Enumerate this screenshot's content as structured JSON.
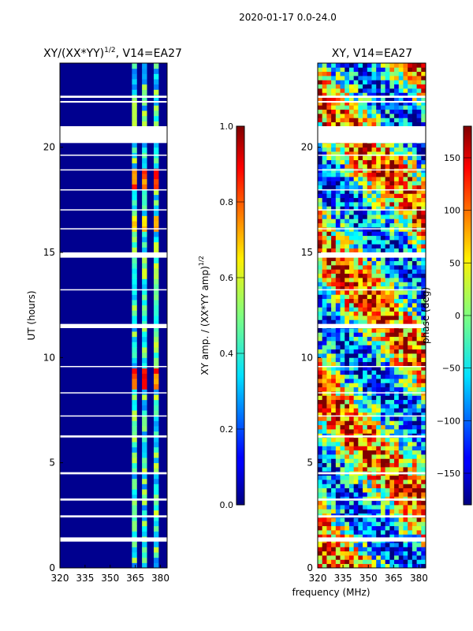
{
  "chart_data": {
    "suptitle": "2020-01-17 0.0-24.0",
    "shared_xlabel": "frequency (MHz)",
    "panels": [
      {
        "type": "heatmap",
        "title": "XY/(XX*YY)",
        "title_sup": "1/2",
        "title_suffix": ", V14=EA27",
        "ylabel": "UT (hours)",
        "xlim": [
          320,
          384
        ],
        "ylim": [
          0,
          24
        ],
        "xticks": [
          320,
          335,
          350,
          365,
          380
        ],
        "yticks": [
          0,
          5,
          10,
          15,
          20
        ],
        "colorbar": {
          "label": "XY amp. / (XX*YY amp)",
          "label_sup": "1/2",
          "range": [
            0.0,
            1.0
          ],
          "ticks": [
            "0.0",
            "0.2",
            "0.4",
            "0.6",
            "0.8",
            "1.0"
          ],
          "tick_values": [
            0.0,
            0.2,
            0.4,
            0.6,
            0.8,
            1.0
          ]
        },
        "background_value": 0.05,
        "flagged_bands_hours": [
          [
            22.35,
            22.45
          ],
          [
            22.12,
            22.2
          ],
          [
            21.0,
            20.2
          ],
          [
            19.6,
            19.65
          ],
          [
            18.9,
            18.95
          ],
          [
            17.95,
            18.0
          ],
          [
            17.0,
            17.05
          ],
          [
            16.1,
            16.15
          ],
          [
            15.0,
            14.75
          ],
          [
            13.2,
            13.25
          ],
          [
            11.6,
            11.4
          ],
          [
            9.55,
            9.6
          ],
          [
            8.3,
            8.35
          ],
          [
            7.2,
            7.25
          ],
          [
            6.3,
            6.2
          ],
          [
            4.55,
            4.45
          ],
          [
            3.3,
            3.2
          ],
          [
            2.5,
            2.4
          ],
          [
            1.45,
            1.25
          ]
        ],
        "bright_channels_mhz": [
          [
            363,
            366
          ],
          [
            369,
            372
          ],
          [
            376,
            379
          ]
        ],
        "bright_value": 0.42,
        "hot_segments": [
          {
            "t": [
              18.0,
              18.9
            ],
            "value": 0.8
          },
          {
            "t": [
              8.4,
              9.2
            ],
            "value": 0.8
          },
          {
            "t": [
              15.9,
              16.6
            ],
            "value": 0.65
          }
        ]
      },
      {
        "type": "heatmap",
        "title": "XY, V14=EA27",
        "xlim": [
          320,
          384
        ],
        "ylim": [
          0,
          24
        ],
        "xticks": [
          320,
          335,
          350,
          365,
          380
        ],
        "yticks": [
          0,
          5,
          10,
          15,
          20
        ],
        "colorbar": {
          "label": "phase (deg)",
          "range": [
            -180,
            180
          ],
          "ticks": [
            "150",
            "100",
            "50",
            "0",
            "−50",
            "−100",
            "−150"
          ],
          "tick_values": [
            150,
            100,
            50,
            0,
            -50,
            -100,
            -150
          ]
        },
        "flagged_bands_hours": [
          [
            22.35,
            22.45
          ],
          [
            22.12,
            22.2
          ],
          [
            21.0,
            20.2
          ],
          [
            19.6,
            19.65
          ],
          [
            18.9,
            18.95
          ],
          [
            17.95,
            18.0
          ],
          [
            17.0,
            17.05
          ],
          [
            16.1,
            16.15
          ],
          [
            15.0,
            14.75
          ],
          [
            13.2,
            13.25
          ],
          [
            11.6,
            11.4
          ],
          [
            9.55,
            9.6
          ],
          [
            8.3,
            8.35
          ],
          [
            7.2,
            7.25
          ],
          [
            6.3,
            6.2
          ],
          [
            4.55,
            4.45
          ],
          [
            3.3,
            3.2
          ],
          [
            2.5,
            2.4
          ],
          [
            1.45,
            1.25
          ]
        ],
        "phase_pattern": "noisy phase wrapping between -180 and 180 deg"
      }
    ]
  }
}
